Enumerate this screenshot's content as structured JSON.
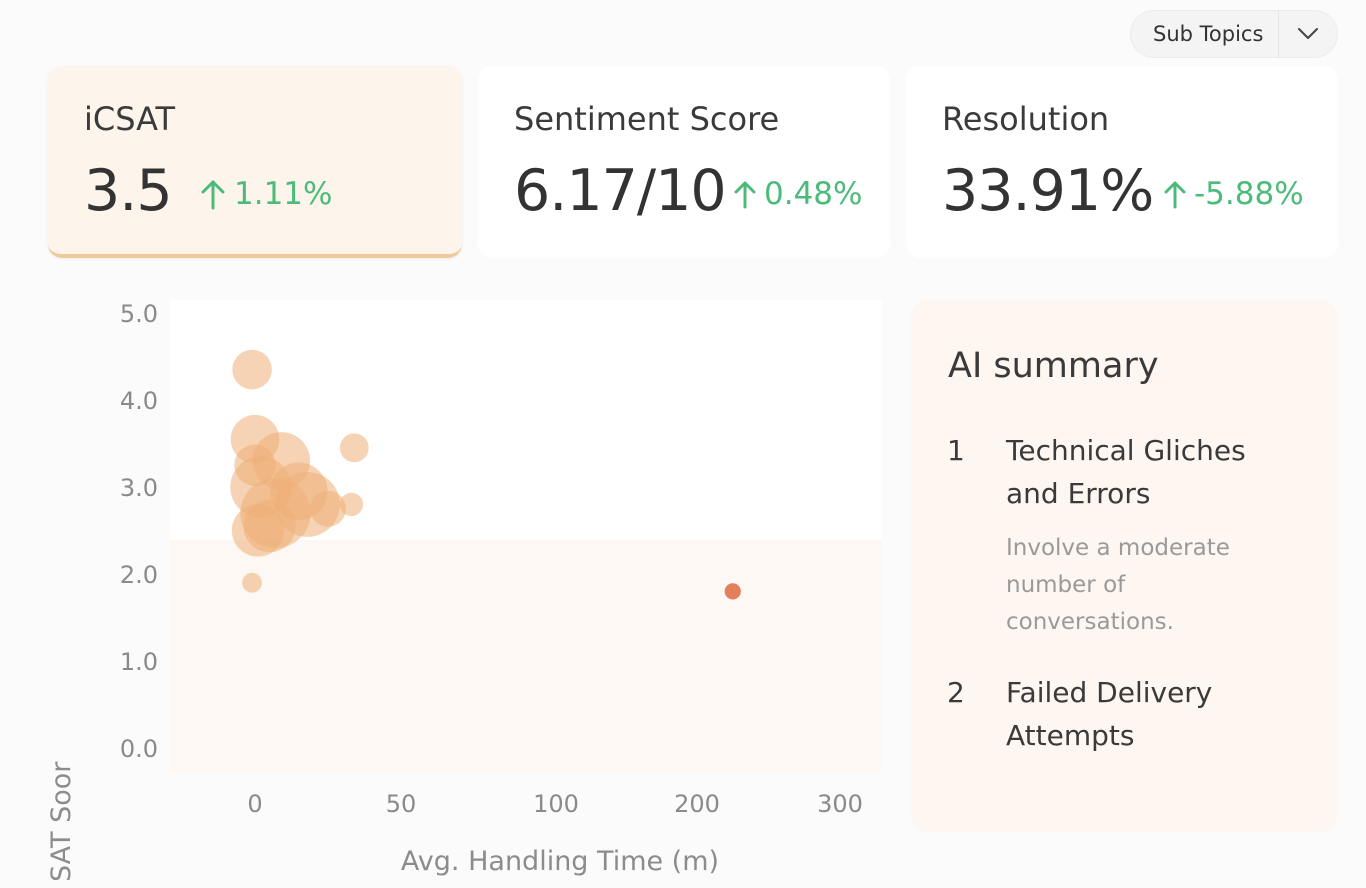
{
  "filter": {
    "label": "Sub Topics"
  },
  "metrics": [
    {
      "title": "iCSAT",
      "value": "3.5",
      "delta": "1.11%"
    },
    {
      "title": "Sentiment Score",
      "value": "6.17/10",
      "delta": "0.48%"
    },
    {
      "title": "Resolution",
      "value": "33.91%",
      "delta": "-5.88%"
    }
  ],
  "chart_data": {
    "type": "scatter",
    "title": "",
    "xlabel": "Avg. Handling Time (m)",
    "ylabel": "iCSAT Soor",
    "x_ticks": [
      "0",
      "50",
      "100",
      "200",
      "300"
    ],
    "x_tick_values": [
      0,
      50,
      100,
      200,
      300
    ],
    "y_ticks": [
      "5.0",
      "4.0",
      "3.0",
      "2.0",
      "1.0",
      "0.0"
    ],
    "y_tick_values": [
      5,
      4,
      3,
      2,
      1,
      0
    ],
    "xlim": [
      0,
      300
    ],
    "ylim": [
      0,
      5
    ],
    "colors": {
      "bubble": "#efae77",
      "outlier": "#e0724a"
    },
    "series": [
      {
        "name": "Sub Topics",
        "points": [
          {
            "x": -1,
            "y": 4.35,
            "size": 2.2
          },
          {
            "x": 0,
            "y": 3.55,
            "size": 2.7
          },
          {
            "x": 9,
            "y": 3.3,
            "size": 3.2
          },
          {
            "x": 0,
            "y": 3.25,
            "size": 2.3
          },
          {
            "x": 34,
            "y": 3.45,
            "size": 1.6
          },
          {
            "x": 2,
            "y": 3.0,
            "size": 3.4
          },
          {
            "x": 15,
            "y": 2.95,
            "size": 3.2
          },
          {
            "x": 33,
            "y": 2.8,
            "size": 1.3
          },
          {
            "x": 25,
            "y": 2.75,
            "size": 2.0
          },
          {
            "x": 18,
            "y": 2.8,
            "size": 3.6
          },
          {
            "x": 7,
            "y": 2.7,
            "size": 3.9
          },
          {
            "x": 5,
            "y": 2.55,
            "size": 2.9
          },
          {
            "x": 1,
            "y": 2.5,
            "size": 2.9
          },
          {
            "x": -1,
            "y": 1.9,
            "size": 1.1
          },
          {
            "x": 225,
            "y": 1.8,
            "size": 0.9,
            "highlight": true
          }
        ]
      }
    ]
  },
  "summary": {
    "title": "AI summary",
    "items": [
      {
        "num": "1",
        "title": "Technical Gliches and Errors",
        "desc": "Involve a moderate number of conversations."
      },
      {
        "num": "2",
        "title": "Failed Delivery Attempts",
        "desc": ""
      }
    ]
  }
}
